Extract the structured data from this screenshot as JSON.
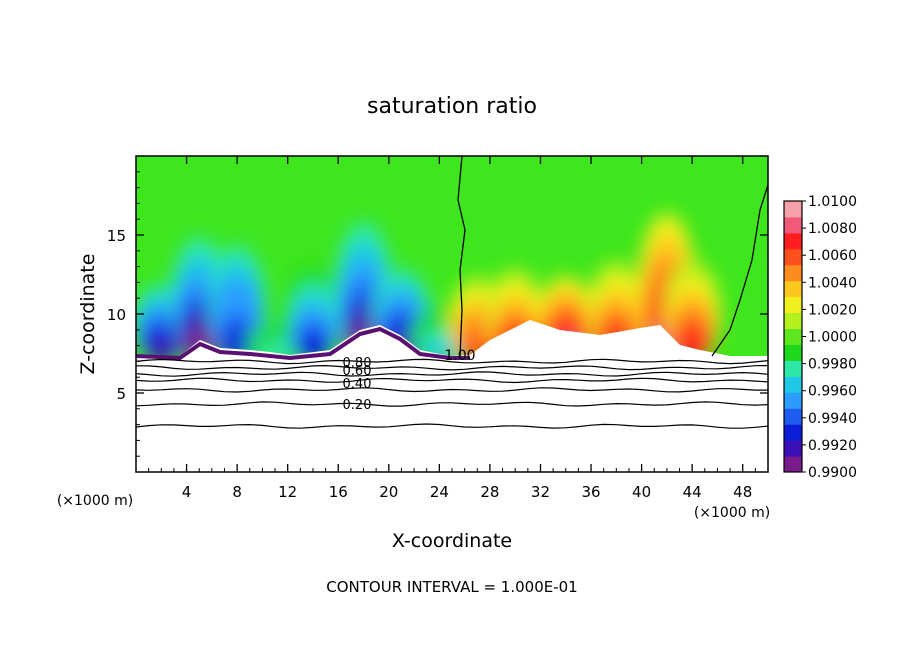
{
  "chart_data": {
    "type": "heatmap",
    "title": "saturation ratio",
    "xlabel": "X-coordinate",
    "ylabel": "Z-coordinate",
    "x_unit_left": "(×1000 m)",
    "x_unit_right": "(×1000 m)",
    "xlim": [
      0,
      50
    ],
    "ylim": [
      0,
      20
    ],
    "x_ticks": [
      4,
      8,
      12,
      16,
      20,
      24,
      28,
      32,
      36,
      40,
      44,
      48
    ],
    "y_ticks": [
      5,
      10,
      15
    ],
    "footer": "CONTOUR INTERVAL = 1.000E-01",
    "colorbar": {
      "min": 0.99,
      "max": 1.01,
      "tick_labels": [
        "1.0100",
        "1.0080",
        "1.0060",
        "1.0040",
        "1.0020",
        "1.0000",
        "0.9980",
        "0.9960",
        "0.9940",
        "0.9920",
        "0.9900"
      ],
      "colors": [
        "#7a1c8c",
        "#3b10b4",
        "#0d1ed8",
        "#1e5cf0",
        "#2c9cff",
        "#1ec8e6",
        "#2ee8a8",
        "#1ed81e",
        "#5ee61e",
        "#b4f01e",
        "#f0f01e",
        "#ffc81e",
        "#ff8c1e",
        "#ff501e",
        "#ff1e1e",
        "#f05a78",
        "#f6a0aa"
      ]
    },
    "contour_labels": [
      "1.00",
      "0.80",
      "0.60",
      "0.40",
      "0.20"
    ],
    "cloud_columns": [
      {
        "x": 2,
        "top": 11.5,
        "min": 0.9915
      },
      {
        "x": 5,
        "top": 14.5,
        "min": 0.991
      },
      {
        "x": 8,
        "top": 14.0,
        "min": 0.9925
      },
      {
        "x": 11,
        "top": 9.0,
        "min": 0.9975
      },
      {
        "x": 14,
        "top": 12.5,
        "min": 0.993
      },
      {
        "x": 18,
        "top": 15.5,
        "min": 0.991
      },
      {
        "x": 21,
        "top": 12.5,
        "min": 0.9915
      },
      {
        "x": 24,
        "top": 10.0,
        "min": 0.997
      }
    ],
    "supersat_columns": [
      {
        "x": 27,
        "top": 12.0,
        "max": 1.006
      },
      {
        "x": 30,
        "top": 12.5,
        "max": 1.007
      },
      {
        "x": 34,
        "top": 12.0,
        "max": 1.008
      },
      {
        "x": 38,
        "top": 13.0,
        "max": 1.007
      },
      {
        "x": 42,
        "top": 16.0,
        "max": 1.008
      },
      {
        "x": 44,
        "top": 13.0,
        "max": 1.007
      }
    ]
  }
}
